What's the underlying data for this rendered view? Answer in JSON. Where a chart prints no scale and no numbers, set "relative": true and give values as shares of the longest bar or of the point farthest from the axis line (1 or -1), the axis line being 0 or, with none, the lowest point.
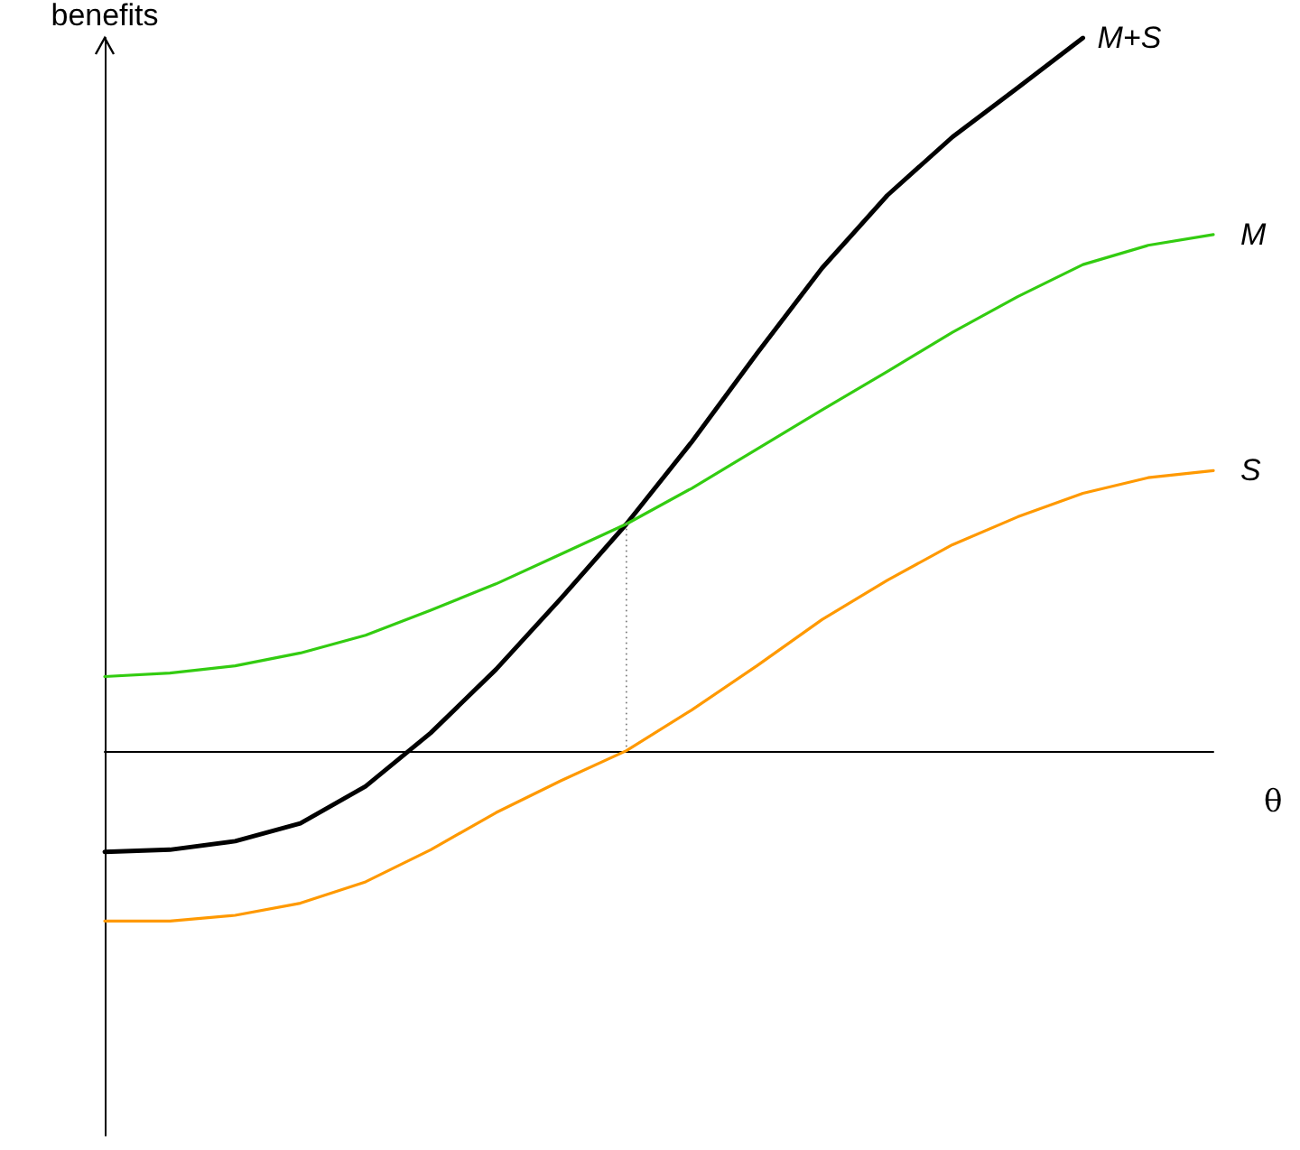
{
  "chart_data": {
    "type": "line",
    "relative": true,
    "xlabel": "θ",
    "ylabel": "benefits",
    "categories": [
      null,
      null,
      null,
      null,
      null,
      null,
      null,
      null,
      null,
      null,
      null,
      null,
      null,
      null,
      null,
      null,
      null,
      null
    ],
    "series": [
      {
        "name": "M+S",
        "color": "#000000",
        "values": [
          -0.142,
          -0.139,
          -0.127,
          -0.102,
          -0.05,
          0.025,
          0.114,
          0.214,
          0.318,
          0.433,
          0.557,
          0.677,
          0.779,
          0.861,
          0.93,
          1.0,
          null,
          null
        ]
      },
      {
        "name": "M",
        "color": "#33cc11",
        "values": [
          0.104,
          0.109,
          0.119,
          0.137,
          0.162,
          0.197,
          0.234,
          0.276,
          0.318,
          0.368,
          0.423,
          0.478,
          0.532,
          0.587,
          0.637,
          0.682,
          0.709,
          0.724
        ]
      },
      {
        "name": "S",
        "color": "#ff9900",
        "values": [
          -0.239,
          -0.239,
          -0.231,
          -0.214,
          -0.184,
          -0.139,
          -0.087,
          -0.042,
          0,
          0.057,
          0.119,
          0.184,
          0.239,
          0.289,
          0.328,
          0.361,
          0.383,
          0.393
        ]
      }
    ],
    "grid": false,
    "legend": false,
    "marker": "none",
    "line_style": "solid"
  }
}
